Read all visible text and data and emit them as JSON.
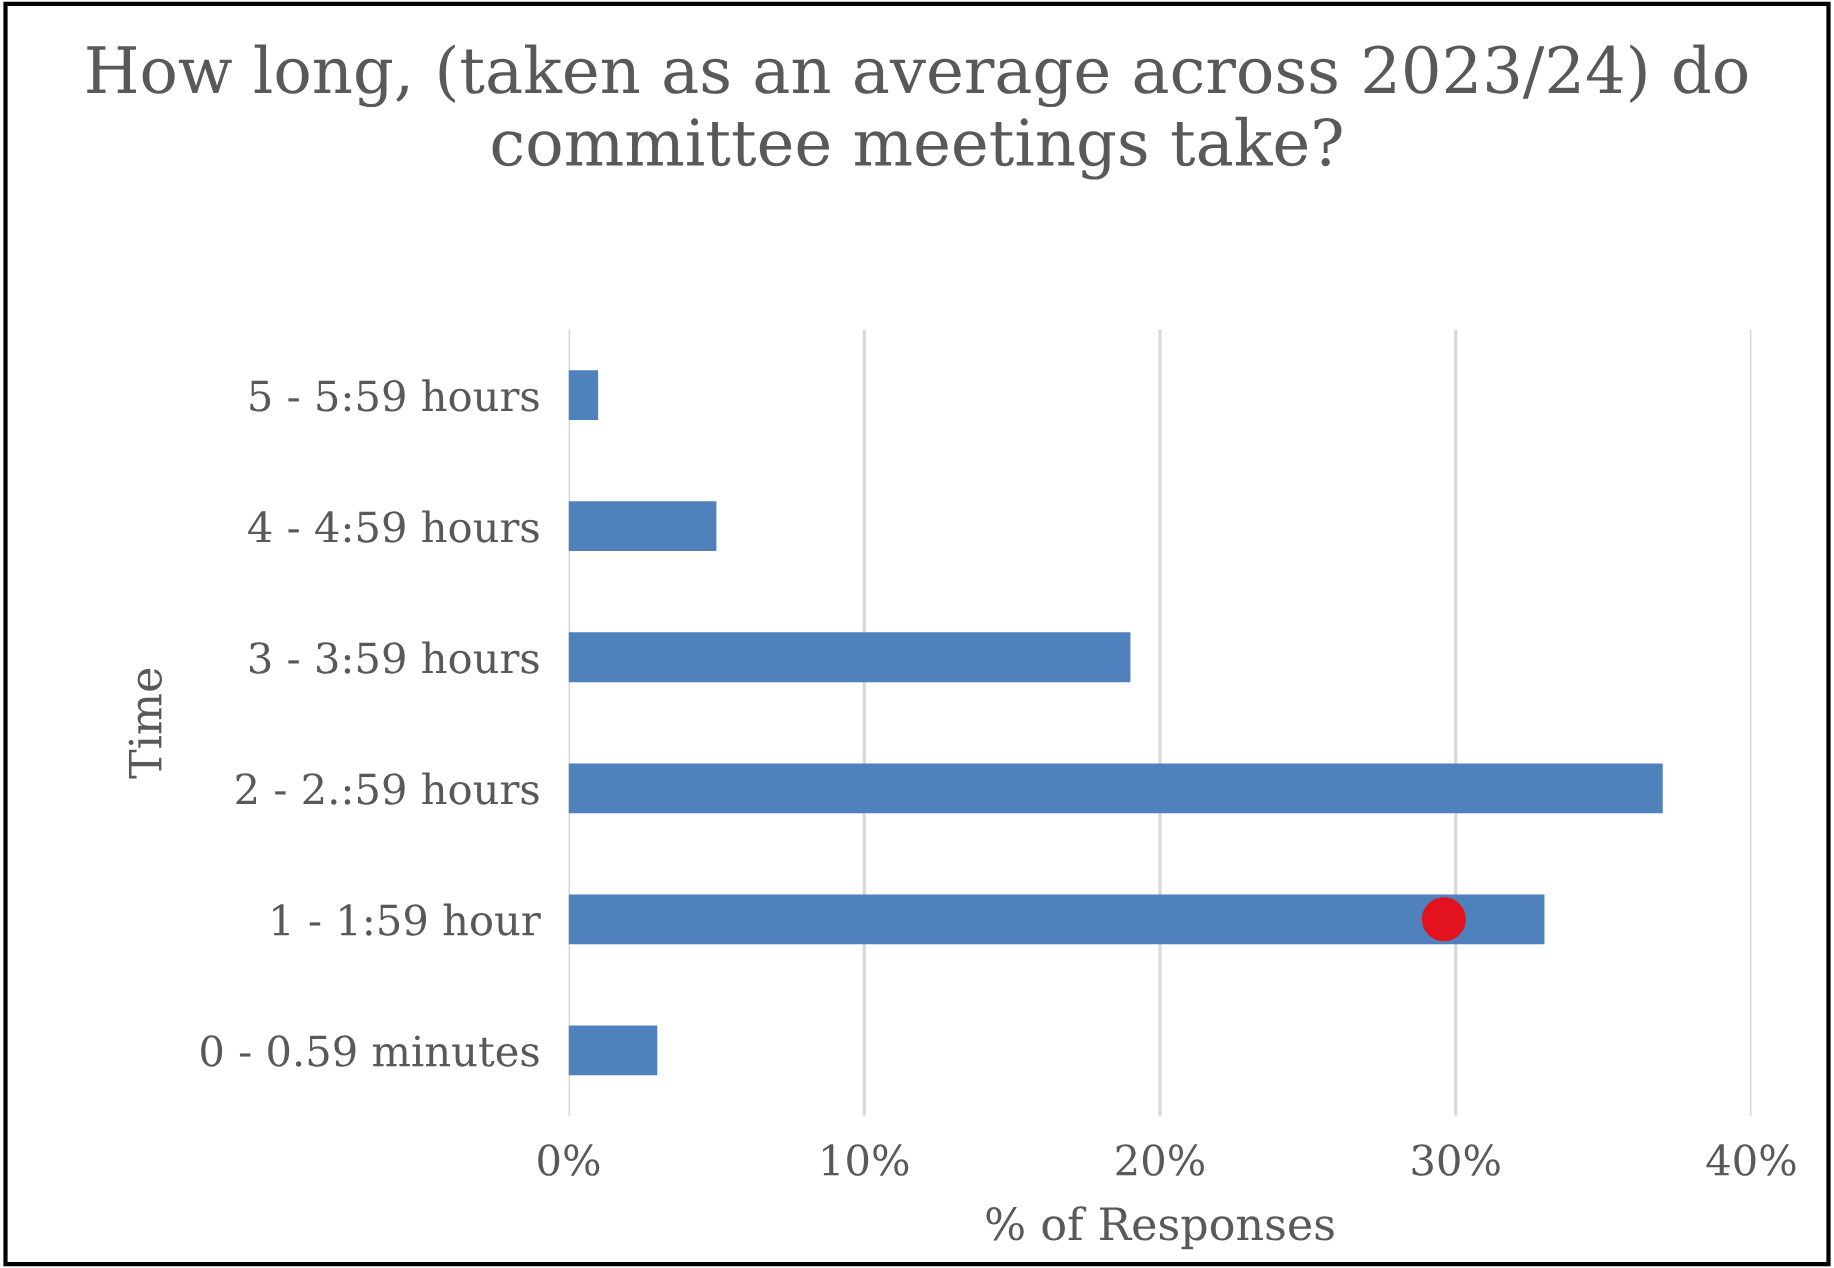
{
  "chart_data": {
    "type": "bar",
    "orientation": "horizontal",
    "title": "How long, (taken as an average across 2023/24) do committee meetings take?",
    "xlabel": "% of Responses",
    "ylabel": "Time",
    "categories": [
      "5 - 5:59 hours",
      "4 - 4:59 hours",
      "3 - 3:59 hours",
      "2 - 2.:59 hours",
      "1 - 1:59 hour",
      "0 - 0.59 minutes"
    ],
    "series": [
      {
        "color": "#4f81bd",
        "values": [
          1,
          5,
          19,
          37,
          33,
          3
        ]
      },
      {
        "type": "scatter",
        "color": "#e3121f",
        "values": [
          null,
          null,
          null,
          null,
          29.6,
          null
        ]
      }
    ],
    "xlim": [
      0,
      40
    ],
    "xticks": [
      {
        "value": 0,
        "label": "0%"
      },
      {
        "value": 10,
        "label": "10%"
      },
      {
        "value": 20,
        "label": "20%"
      },
      {
        "value": 30,
        "label": "30%"
      },
      {
        "value": 40,
        "label": "40%"
      }
    ],
    "grid": "x",
    "legend": false,
    "marker": "circle"
  }
}
